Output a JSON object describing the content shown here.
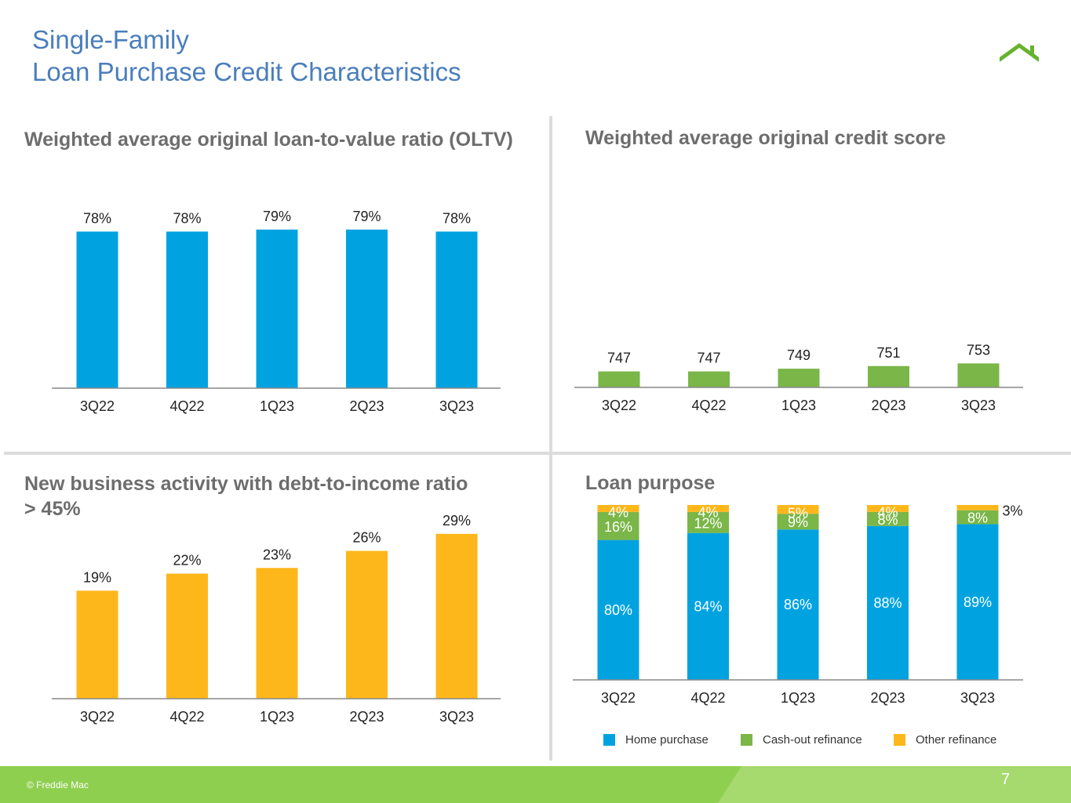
{
  "header": {
    "title_line1": "Single-Family",
    "title_line2": "Loan Purchase Credit Characteristics"
  },
  "logo": {
    "icon": "house-roof-icon",
    "color": "#66b22e"
  },
  "footer": {
    "copyright": "© Freddie Mac",
    "page_number": "7",
    "color": "#8fcf50"
  },
  "colors": {
    "oltv": "#00a3e0",
    "credit": "#7ab648",
    "dti": "#fdb71a",
    "home_purchase": "#00a3e0",
    "cash_out": "#7ab648",
    "other_refi": "#fdb71a"
  },
  "chart_data": [
    {
      "type": "bar",
      "title": "Weighted average original loan-to-value ratio (OLTV)",
      "categories": [
        "3Q22",
        "4Q22",
        "1Q23",
        "2Q23",
        "3Q23"
      ],
      "values": [
        78,
        78,
        79,
        79,
        78
      ],
      "labels": [
        "78%",
        "78%",
        "79%",
        "79%",
        "78%"
      ]
    },
    {
      "type": "bar",
      "title": "Weighted average original credit score",
      "categories": [
        "3Q22",
        "4Q22",
        "1Q23",
        "2Q23",
        "3Q23"
      ],
      "values": [
        747,
        747,
        749,
        751,
        753
      ],
      "labels": [
        "747",
        "747",
        "749",
        "751",
        "753"
      ]
    },
    {
      "type": "bar",
      "title": "New business activity with debt-to-income ratio > 45%",
      "categories": [
        "3Q22",
        "4Q22",
        "1Q23",
        "2Q23",
        "3Q23"
      ],
      "values": [
        19,
        22,
        23,
        26,
        29
      ],
      "labels": [
        "19%",
        "22%",
        "23%",
        "26%",
        "29%"
      ]
    },
    {
      "type": "bar",
      "stacked": true,
      "title": "Loan purpose",
      "categories": [
        "3Q22",
        "4Q22",
        "1Q23",
        "2Q23",
        "3Q23"
      ],
      "series": [
        {
          "name": "Home purchase",
          "values": [
            80,
            84,
            86,
            88,
            89
          ],
          "labels": [
            "80%",
            "84%",
            "86%",
            "88%",
            "89%"
          ]
        },
        {
          "name": "Cash-out refinance",
          "values": [
            16,
            12,
            9,
            8,
            8
          ],
          "labels": [
            "16%",
            "12%",
            "9%",
            "8%",
            "8%"
          ]
        },
        {
          "name": "Other refinance",
          "values": [
            4,
            4,
            5,
            4,
            3
          ],
          "labels": [
            "4%",
            "4%",
            "5%",
            "4%",
            "3%"
          ]
        }
      ],
      "legend": "bottom"
    }
  ]
}
